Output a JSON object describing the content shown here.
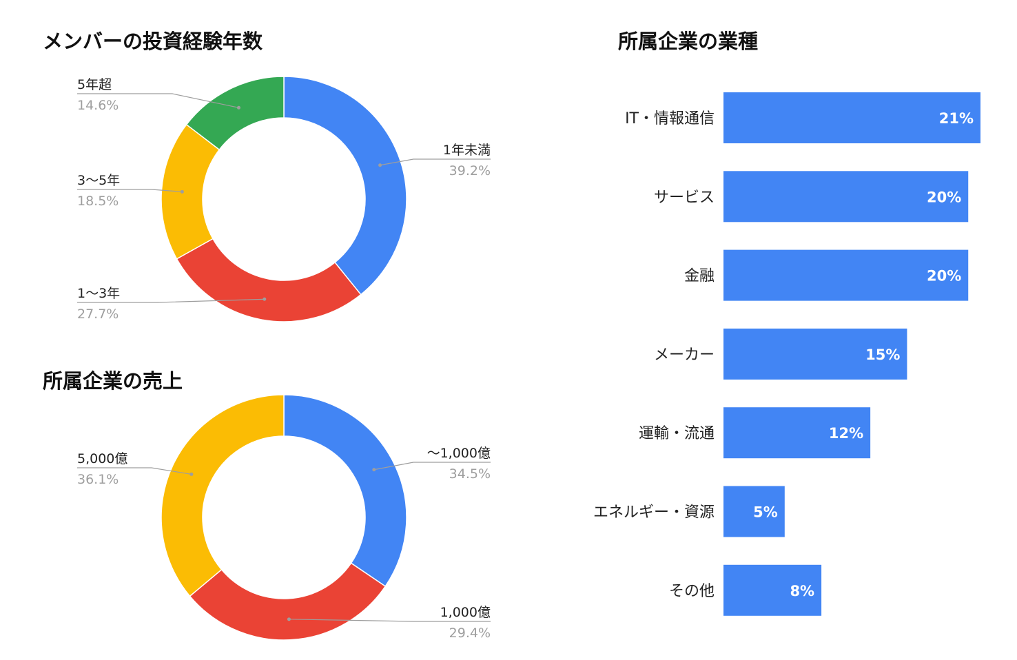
{
  "chart_data": [
    {
      "type": "pie",
      "title": "メンバーの投資経験年数",
      "donut": true,
      "start": "top",
      "direction": "clockwise",
      "slices": [
        {
          "label": "1年未満",
          "value": 39.2,
          "pct": "39.2%",
          "color": "#4285F4"
        },
        {
          "label": "1〜3年",
          "value": 27.7,
          "pct": "27.7%",
          "color": "#EA4335"
        },
        {
          "label": "3〜5年",
          "value": 18.5,
          "pct": "18.5%",
          "color": "#FBBC04"
        },
        {
          "label": "5年超",
          "value": 14.6,
          "pct": "14.6%",
          "color": "#34A853"
        }
      ]
    },
    {
      "type": "pie",
      "title": "所属企業の売上",
      "donut": true,
      "start": "top",
      "direction": "clockwise",
      "slices": [
        {
          "label": "〜1,000億",
          "value": 34.5,
          "pct": "34.5%",
          "color": "#4285F4"
        },
        {
          "label": "1,000億",
          "value": 29.4,
          "pct": "29.4%",
          "color": "#EA4335"
        },
        {
          "label": "5,000億",
          "value": 36.1,
          "pct": "36.1%",
          "color": "#FBBC04"
        }
      ]
    },
    {
      "type": "bar",
      "orientation": "horizontal",
      "title": "所属企業の業種",
      "color": "#4285F4",
      "categories": [
        "IT・情報通信",
        "サービス",
        "金融",
        "メーカー",
        "運輸・流通",
        "エネルギー・資源",
        "その他"
      ],
      "values": [
        21,
        20,
        20,
        15,
        12,
        5,
        8
      ],
      "value_labels": [
        "21%",
        "20%",
        "20%",
        "15%",
        "12%",
        "5%",
        "8%"
      ],
      "xlim": [
        0,
        21
      ]
    }
  ]
}
